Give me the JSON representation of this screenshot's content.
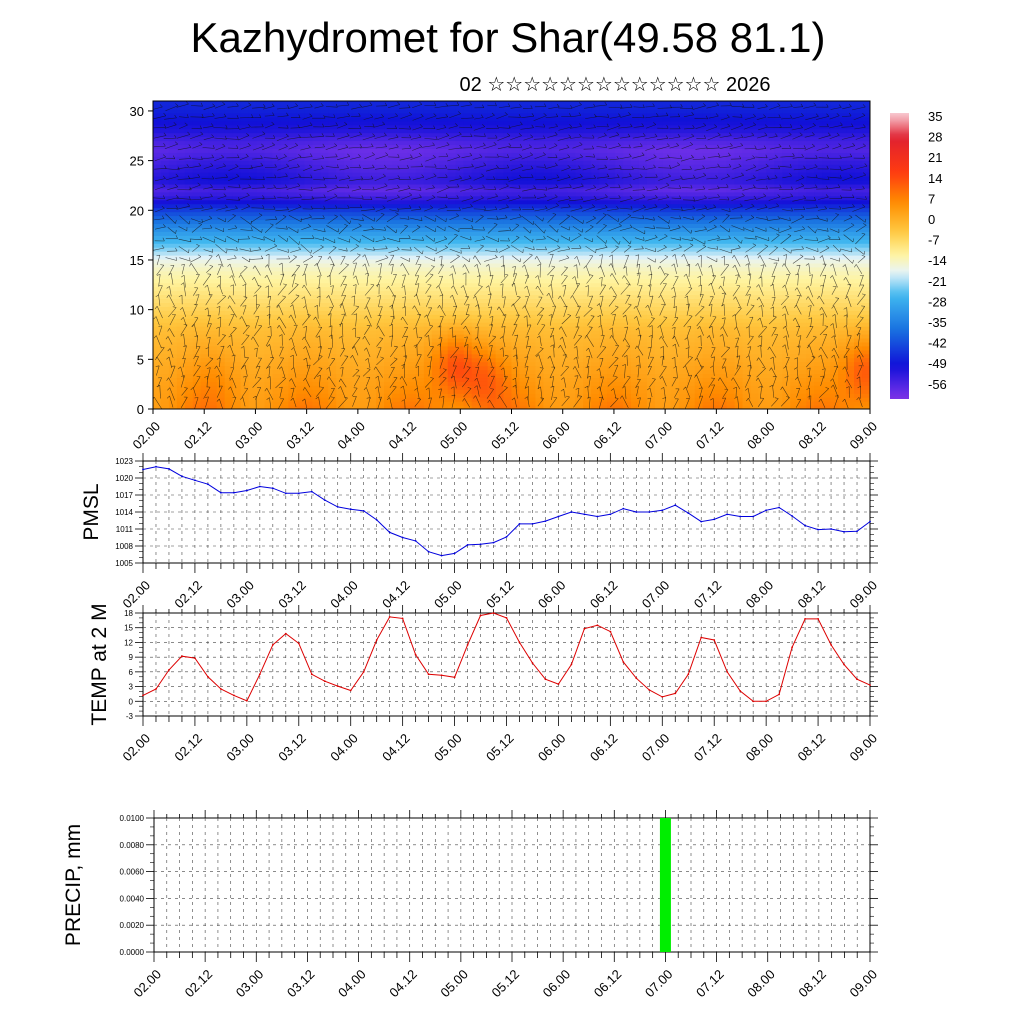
{
  "title": "Kazhydromet for Shar(49.58 81.1)",
  "subtitle": "02 ☆☆☆☆☆☆☆☆☆☆☆☆☆ 2026",
  "time_ticks": [
    "02.00",
    "02.12",
    "03.00",
    "03.12",
    "04.00",
    "04.12",
    "05.00",
    "05.12",
    "06.00",
    "06.12",
    "07.00",
    "07.12",
    "08.00",
    "08.12",
    "09.00"
  ],
  "chart_data": [
    {
      "type": "heatmap",
      "name": "temperature-wind-profile",
      "ylim": [
        0,
        31
      ],
      "yticks": [
        0,
        5,
        10,
        15,
        20,
        25,
        30
      ],
      "colorbar": {
        "labels": [
          "35",
          "28",
          "21",
          "14",
          "7",
          "0",
          "-7",
          "-14",
          "-21",
          "-28",
          "-35",
          "-42",
          "-49",
          "-56"
        ],
        "stops": [
          {
            "v": 38,
            "c": "#f8c8d0"
          },
          {
            "v": 30,
            "c": "#e02030"
          },
          {
            "v": 18,
            "c": "#ff3c10"
          },
          {
            "v": 8,
            "c": "#ff8c00"
          },
          {
            "v": -2,
            "c": "#ffc840"
          },
          {
            "v": -10,
            "c": "#fff4a0"
          },
          {
            "v": -16,
            "c": "#e8f4f8"
          },
          {
            "v": -24,
            "c": "#40b8f0"
          },
          {
            "v": -36,
            "c": "#1870e0"
          },
          {
            "v": -48,
            "c": "#1010d8"
          },
          {
            "v": -58,
            "c": "#7030e8"
          },
          {
            "v": -62,
            "c": "#9038e0"
          }
        ]
      },
      "xlim": [
        0,
        7
      ],
      "profile_height_km": [
        0,
        1,
        2,
        3,
        4,
        5,
        6,
        7,
        8,
        9,
        10,
        11,
        12,
        13,
        14,
        15,
        16,
        17,
        18,
        19,
        20,
        21,
        22,
        23,
        24,
        25,
        26,
        27,
        28,
        29,
        30,
        31
      ],
      "profile_temp_c": [
        8,
        7,
        6,
        5,
        4,
        3,
        2,
        1,
        0,
        -2,
        -4,
        -6,
        -8,
        -10,
        -12,
        -15,
        -20,
        -25,
        -30,
        -36,
        -42,
        -50,
        -55,
        -50,
        -52,
        -54,
        -56,
        -54,
        -50,
        -48,
        -46,
        -45
      ],
      "hot_spots": [
        {
          "t": 2.95,
          "z": 4.5,
          "dT": 12
        },
        {
          "t": 3.25,
          "z": 3.0,
          "dT": 8
        },
        {
          "t": 6.95,
          "z": 4.0,
          "dT": 11
        },
        {
          "t": 0.6,
          "z": 3.0,
          "dT": 2
        }
      ]
    },
    {
      "type": "line",
      "name": "PMSL",
      "ylabel": "PMSL",
      "color": "#0000dd",
      "ylim": [
        1005,
        1023
      ],
      "yticks": [
        "1023",
        "1020",
        "1017",
        "1014",
        "1011",
        "1008",
        "1005"
      ],
      "x": [
        0,
        0.125,
        0.25,
        0.375,
        0.5,
        0.625,
        0.75,
        0.875,
        1,
        1.125,
        1.25,
        1.375,
        1.5,
        1.625,
        1.75,
        1.875,
        2,
        2.125,
        2.25,
        2.375,
        2.5,
        2.625,
        2.75,
        2.875,
        3,
        3.125,
        3.25,
        3.375,
        3.5,
        3.625,
        3.75,
        3.875,
        4,
        4.125,
        4.25,
        4.375,
        4.5,
        4.625,
        4.75,
        4.875,
        5,
        5.125,
        5.25,
        5.375,
        5.5,
        5.625,
        5.75,
        5.875,
        6,
        6.125,
        6.25,
        6.375,
        6.5,
        6.625,
        6.75,
        6.875,
        7
      ],
      "values": [
        1021.5,
        1022,
        1021.6,
        1020.3,
        1019.6,
        1018.9,
        1017.4,
        1017.4,
        1017.8,
        1018.5,
        1018.2,
        1017.3,
        1017.3,
        1017.6,
        1016.1,
        1014.9,
        1014.5,
        1014.2,
        1012.6,
        1010.4,
        1009.5,
        1008.9,
        1007,
        1006.3,
        1006.7,
        1008.2,
        1008.3,
        1008.6,
        1009.6,
        1011.9,
        1011.9,
        1012.4,
        1013.2,
        1014,
        1013.6,
        1013.2,
        1013.6,
        1014.6,
        1014,
        1014,
        1014.3,
        1015.2,
        1013.8,
        1012.3,
        1012.7,
        1013.6,
        1013.2,
        1013.2,
        1014.3,
        1014.8,
        1013.3,
        1011.6,
        1010.9,
        1011,
        1010.5,
        1010.6,
        1012.3
      ]
    },
    {
      "type": "line",
      "name": "TEMP at 2 M",
      "ylabel": "TEMP at 2 M",
      "color": "#dd0000",
      "ylim": [
        -3,
        18
      ],
      "yticks": [
        "18",
        "15",
        "12",
        "9",
        "6",
        "3",
        "0",
        "-3"
      ],
      "x": [
        0,
        0.125,
        0.25,
        0.375,
        0.5,
        0.625,
        0.75,
        0.875,
        1,
        1.125,
        1.25,
        1.375,
        1.5,
        1.625,
        1.75,
        1.875,
        2,
        2.125,
        2.25,
        2.375,
        2.5,
        2.625,
        2.75,
        2.875,
        3,
        3.125,
        3.25,
        3.375,
        3.5,
        3.625,
        3.75,
        3.875,
        4,
        4.125,
        4.25,
        4.375,
        4.5,
        4.625,
        4.75,
        4.875,
        5,
        5.125,
        5.25,
        5.375,
        5.5,
        5.625,
        5.75,
        5.875,
        6,
        6.125,
        6.25,
        6.375,
        6.5,
        6.625,
        6.75,
        6.875,
        7
      ],
      "values": [
        1.2,
        2.5,
        6.4,
        9.2,
        8.8,
        5,
        2.5,
        1.2,
        0.1,
        5.5,
        11.5,
        13.8,
        11.8,
        5.5,
        4.1,
        3.1,
        2.2,
        6,
        12.5,
        17.2,
        16.9,
        9.5,
        5.5,
        5.3,
        4.9,
        11.5,
        17.5,
        18,
        17,
        12,
        7.8,
        4.5,
        3.5,
        7.5,
        14.8,
        15.5,
        14.2,
        8,
        4.7,
        2.3,
        0.9,
        1.6,
        5.5,
        13,
        12.5,
        6,
        2.1,
        0,
        0,
        1.4,
        11,
        16.8,
        16.8,
        11.5,
        7.5,
        4.5,
        3.3
      ]
    },
    {
      "type": "bar",
      "name": "PRECIP, mm",
      "ylabel": "PRECIP, mm",
      "color": "#00ee00",
      "ylim": [
        0,
        0.01
      ],
      "yticks": [
        "0.0100",
        "0.0080",
        "0.0060",
        "0.0040",
        "0.0020",
        "0.0000"
      ],
      "bars": [
        {
          "x": 5.0,
          "value": 0.01
        }
      ]
    }
  ]
}
